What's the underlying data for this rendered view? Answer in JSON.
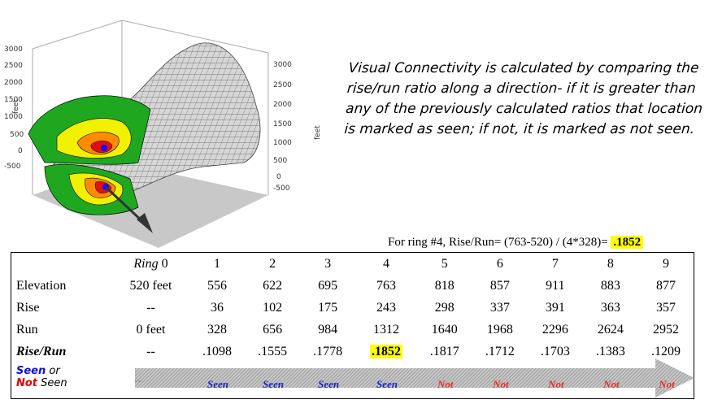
{
  "plot": {
    "left_ticks": [
      "3000",
      "2500",
      "2000",
      "1500",
      "1000",
      "500",
      "0",
      "-500"
    ],
    "right_ticks": [
      "3000",
      "2500",
      "2000",
      "1500",
      "1000",
      "500",
      "0",
      "-500"
    ],
    "left_axis_label": "feet",
    "right_axis_label": "feet",
    "colors": {
      "mesh": "#d8d8d8",
      "green": "#1fa81f",
      "yellow": "#f0f000",
      "orange": "#ff8c00",
      "red": "#e01010",
      "center": "#1010ff"
    }
  },
  "caption": "Visual Connectivity is calculated by comparing the rise/run ratio along a direction- if it is greater than any of the previously calculated ratios that location is marked as seen; if not, it is marked as not seen.",
  "formula": {
    "text": "For ring #4, Rise/Run= (763-520) / (4*328)=",
    "value": ".1852"
  },
  "table": {
    "ring_word": "Ring",
    "header": [
      "0",
      "1",
      "2",
      "3",
      "4",
      "5",
      "6",
      "7",
      "8",
      "9"
    ],
    "rows": [
      {
        "label": "Elevation",
        "values": [
          "520 feet",
          "556",
          "622",
          "695",
          "763",
          "818",
          "857",
          "911",
          "883",
          "877"
        ]
      },
      {
        "label": "Rise",
        "values": [
          "--",
          "36",
          "102",
          "175",
          "243",
          "298",
          "337",
          "391",
          "363",
          "357"
        ]
      },
      {
        "label": "Run",
        "values": [
          "0 feet",
          "328",
          "656",
          "984",
          "1312",
          "1640",
          "1968",
          "2296",
          "2624",
          "2952"
        ]
      },
      {
        "label": "Rise/Run",
        "values": [
          "--",
          ".1098",
          ".1555",
          ".1778",
          ".1852",
          ".1817",
          ".1712",
          ".1703",
          ".1383",
          ".1209"
        ]
      }
    ],
    "highlight_col": 4,
    "legend": {
      "seen": "Seen",
      "or": "or",
      "not": "Not",
      "seen2": "Seen"
    },
    "status_dash": "--",
    "status": [
      "Seen",
      "Seen",
      "Seen",
      "Seen",
      "Not",
      "Not",
      "Not",
      "Not",
      "Not"
    ],
    "status_kind": [
      "seen",
      "seen",
      "seen",
      "seen",
      "not",
      "not",
      "not",
      "not",
      "not"
    ]
  }
}
